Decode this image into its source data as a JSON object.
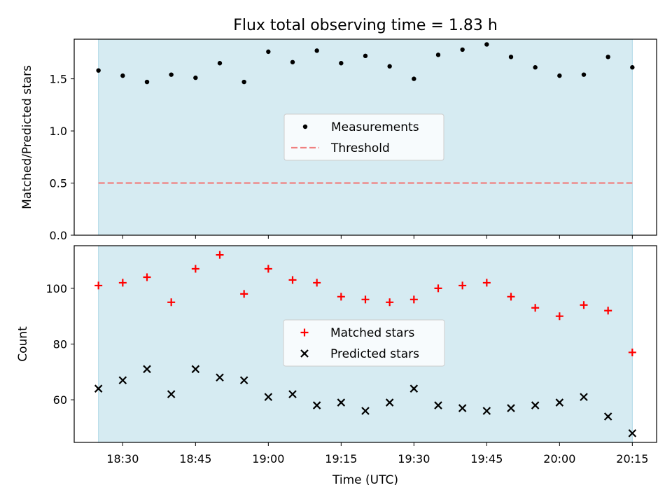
{
  "chart_data": {
    "type": "scatter",
    "title": "Flux total observing time = 1.83 h",
    "xlabel": "Time (UTC)",
    "x": [
      "18:25",
      "18:30",
      "18:35",
      "18:40",
      "18:45",
      "18:50",
      "18:55",
      "19:00",
      "19:05",
      "19:10",
      "19:15",
      "19:20",
      "19:25",
      "19:30",
      "19:35",
      "19:40",
      "19:45",
      "19:50",
      "19:55",
      "20:00",
      "20:05",
      "20:10",
      "20:15"
    ],
    "xticks": [
      "18:30",
      "18:45",
      "19:00",
      "19:15",
      "19:30",
      "19:45",
      "20:00",
      "20:15"
    ],
    "xlim": [
      "18:20",
      "20:20"
    ],
    "shaded_span": [
      "18:25",
      "20:15"
    ],
    "colors": {
      "shade": "#add8e6",
      "measurements": "#000000",
      "threshold": "#f08080",
      "matched": "#ff0000",
      "predicted": "#000000"
    },
    "panels": [
      {
        "ylabel": "Matched/Predicted stars",
        "ylim": [
          0,
          1.88
        ],
        "yticks": [
          "0.0",
          "0.5",
          "1.0",
          "1.5"
        ],
        "legend": "center",
        "series": [
          {
            "name": "Measurements",
            "marker": "dot",
            "values": [
              1.58,
              1.53,
              1.47,
              1.54,
              1.51,
              1.65,
              1.47,
              1.76,
              1.66,
              1.77,
              1.65,
              1.72,
              1.62,
              1.5,
              1.73,
              1.78,
              1.83,
              1.71,
              1.61,
              1.53,
              1.54,
              1.71,
              1.61
            ]
          },
          {
            "name": "Threshold",
            "marker": "dashed-line",
            "values": [
              0.5
            ]
          }
        ]
      },
      {
        "ylabel": "Count",
        "ylim": [
          44.7,
          115.3
        ],
        "yticks": [
          "60",
          "80",
          "100"
        ],
        "legend": "center",
        "series": [
          {
            "name": "Matched stars",
            "marker": "plus",
            "values": [
              101,
              102,
              104,
              95,
              107,
              112,
              98,
              107,
              103,
              102,
              97,
              96,
              95,
              96,
              100,
              101,
              102,
              97,
              93,
              90,
              94,
              92,
              77
            ]
          },
          {
            "name": "Predicted stars",
            "marker": "x",
            "values": [
              64,
              67,
              71,
              62,
              71,
              68,
              67,
              61,
              62,
              58,
              59,
              56,
              59,
              64,
              58,
              57,
              56,
              57,
              58,
              59,
              61,
              54,
              48
            ]
          }
        ]
      }
    ]
  }
}
